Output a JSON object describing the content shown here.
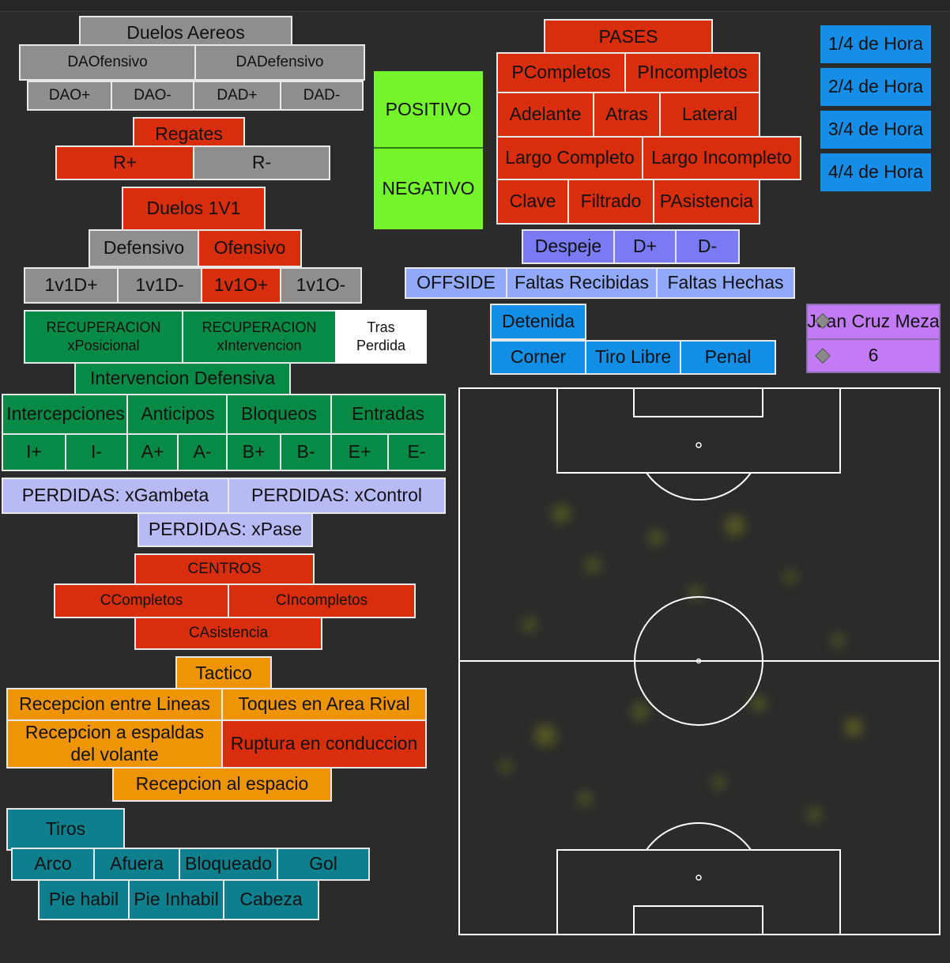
{
  "duelos_aereos": {
    "title": "Duelos Aereos",
    "ofensivo": "DAOfensivo",
    "defensivo": "DADefensivo",
    "buttons": [
      "DAO+",
      "DAO-",
      "DAD+",
      "DAD-"
    ]
  },
  "regates": {
    "title": "Regates",
    "plus": "R+",
    "minus": "R-"
  },
  "duelos_1v1": {
    "title": "Duelos 1V1",
    "defensivo": "Defensivo",
    "ofensivo": "Ofensivo",
    "buttons": [
      "1v1D+",
      "1v1D-",
      "1v1O+",
      "1v1O-"
    ]
  },
  "recuperacion": {
    "posicional": "RECUPERACION\nxPosicional",
    "intervencion": "RECUPERACION\nxIntervencion",
    "tras_perdida": "Tras\nPerdida"
  },
  "intervencion": {
    "title": "Intervencion Defensiva",
    "categories": [
      "Intercepciones",
      "Anticipos",
      "Bloqueos",
      "Entradas"
    ],
    "buttons": [
      "I+",
      "I-",
      "A+",
      "A-",
      "B+",
      "B-",
      "E+",
      "E-"
    ]
  },
  "perdidas": {
    "gambeta": "PERDIDAS: xGambeta",
    "control": "PERDIDAS: xControl",
    "pase": "PERDIDAS: xPase"
  },
  "centros": {
    "title": "CENTROS",
    "completos": "CCompletos",
    "incompletos": "CIncompletos",
    "asistencia": "CAsistencia"
  },
  "tactico": {
    "title": "Tactico",
    "entre_lineas": "Recepcion entre Lineas",
    "toques_area": "Toques en Area Rival",
    "espaldas": "Recepcion a espaldas\ndel volante",
    "ruptura": "Ruptura en conduccion",
    "espacio": "Recepcion al espacio"
  },
  "tiros": {
    "title": "Tiros",
    "row1": [
      "Arco",
      "Afuera",
      "Bloqueado",
      "Gol"
    ],
    "row2": [
      "Pie habil",
      "Pie Inhabil",
      "Cabeza"
    ]
  },
  "toggle": {
    "positivo": "POSITIVO",
    "negativo": "NEGATIVO"
  },
  "pases": {
    "title": "PASES",
    "completos": "PCompletos",
    "incompletos": "PIncompletos",
    "adelante": "Adelante",
    "atras": "Atras",
    "lateral": "Lateral",
    "largo_completo": "Largo Completo",
    "largo_incompleto": "Largo Incompleto",
    "clave": "Clave",
    "filtrado": "Filtrado",
    "asistencia": "PAsistencia"
  },
  "despeje": {
    "title": "Despeje",
    "plus": "D+",
    "minus": "D-"
  },
  "faltas": {
    "offside": "OFFSIDE",
    "recibidas": "Faltas Recibidas",
    "hechas": "Faltas Hechas"
  },
  "detenida": {
    "title": "Detenida",
    "corner": "Corner",
    "tiro_libre": "Tiro Libre",
    "penal": "Penal"
  },
  "tiempo": [
    "1/4 de Hora",
    "2/4 de Hora",
    "3/4 de Hora",
    "4/4 de Hora"
  ],
  "player": {
    "name": "Juan Cruz Meza",
    "number": "6"
  },
  "colors": {
    "background": "#2b2b2b",
    "gray": "#8e8e8e",
    "red": "#d92e0d",
    "green": "#078a45",
    "lavender": "#b8baf5",
    "periwinkle": "#7a7af4",
    "sky": "#91a9fb",
    "blue": "#158ee9",
    "orange": "#ee9405",
    "teal": "#0d7f8d",
    "lime": "#75f62c",
    "violet": "#c27af5",
    "pitch_lines": "#ffffff"
  }
}
